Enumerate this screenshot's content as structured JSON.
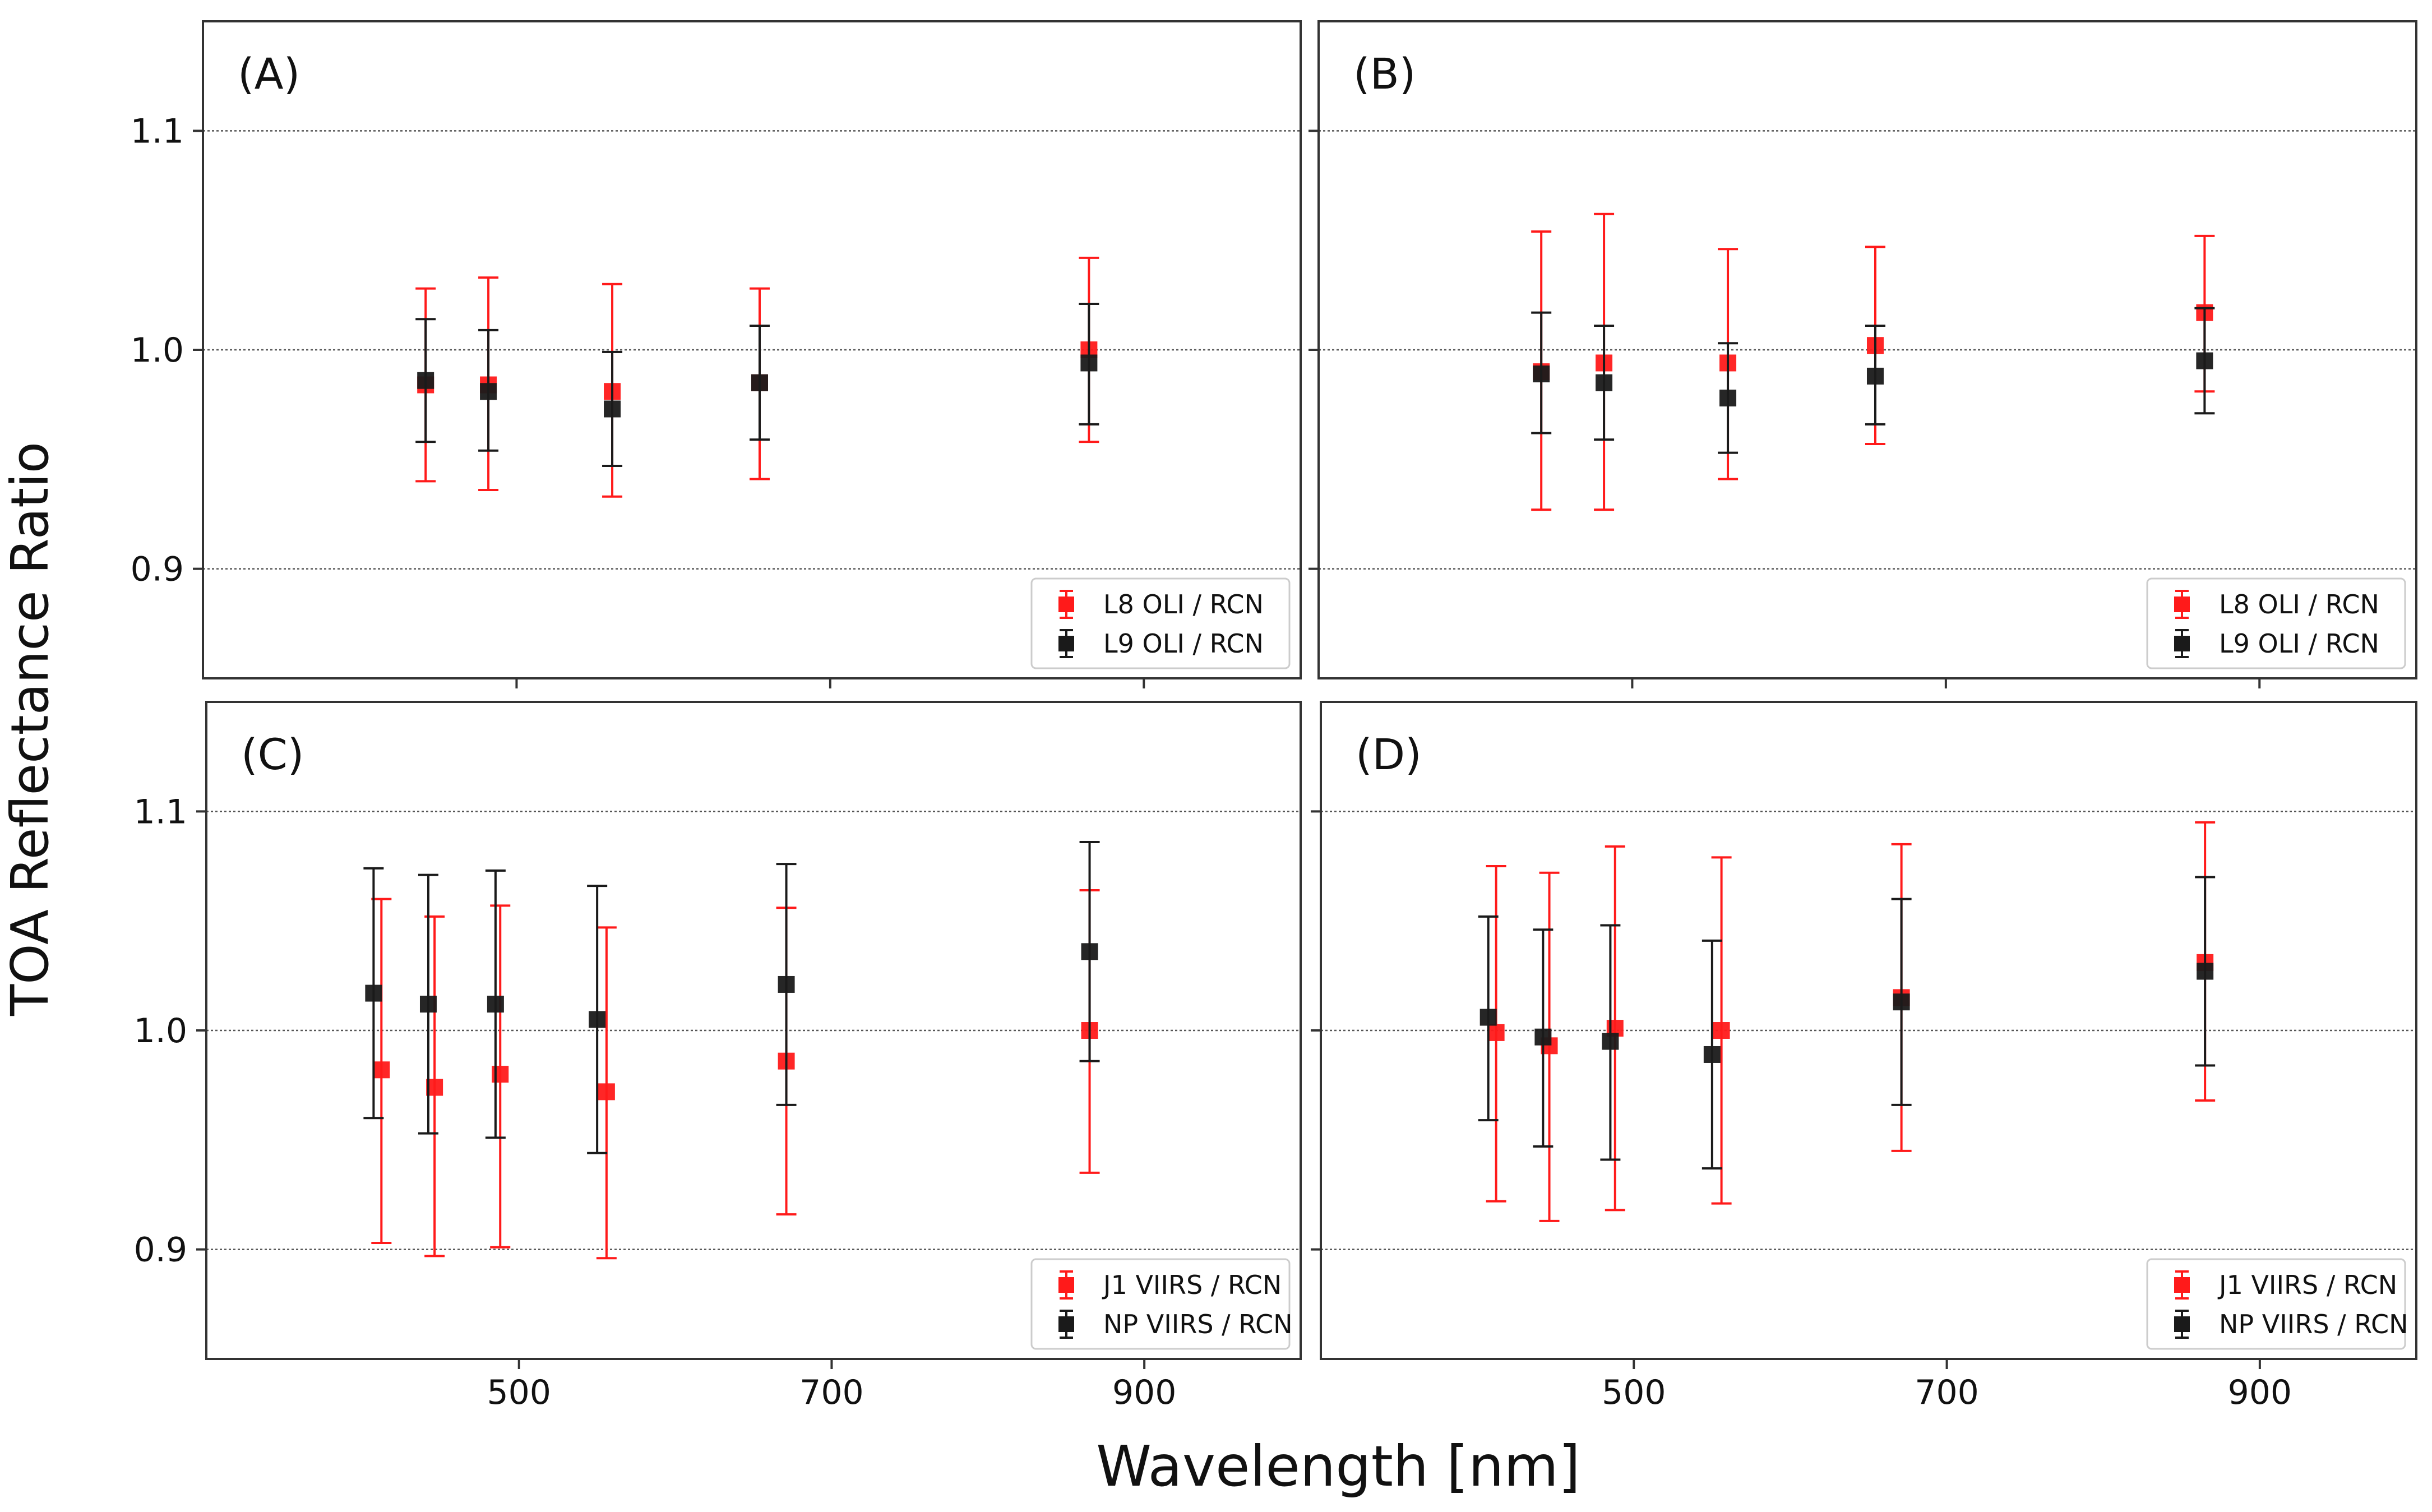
{
  "figure": {
    "ylabel": "TOA Reflectance Ratio",
    "xlabel": "Wavelength [nm]"
  },
  "colors": {
    "red": "#ff1a1a",
    "black": "#1a1a1a",
    "grid": "#555555"
  },
  "chart_data": [
    {
      "type": "scatter",
      "panel_label": "(A)",
      "xlim": [
        300,
        1000
      ],
      "ylim": [
        0.85,
        1.15
      ],
      "xticks": [
        500,
        700,
        900
      ],
      "yticks": [
        0.9,
        1.0,
        1.1
      ],
      "ytick_labels": [
        "0.9",
        "1.0",
        "1.1"
      ],
      "grid": "horizontal dotted",
      "legend_position": "lower-right",
      "series": [
        {
          "name": "L8 OLI / RCN",
          "color": "red",
          "x": [
            442,
            482,
            561,
            655,
            865
          ],
          "y": [
            0.984,
            0.984,
            0.981,
            0.985,
            1.0
          ],
          "yerr_low": [
            0.94,
            0.936,
            0.933,
            0.941,
            0.958
          ],
          "yerr_high": [
            1.028,
            1.033,
            1.03,
            1.028,
            1.042
          ]
        },
        {
          "name": "L9 OLI / RCN",
          "color": "black",
          "x": [
            442,
            482,
            561,
            655,
            865
          ],
          "y": [
            0.986,
            0.981,
            0.973,
            0.985,
            0.994
          ],
          "yerr_low": [
            0.958,
            0.954,
            0.947,
            0.959,
            0.966
          ],
          "yerr_high": [
            1.014,
            1.009,
            0.999,
            1.011,
            1.021
          ]
        }
      ]
    },
    {
      "type": "scatter",
      "panel_label": "(B)",
      "xlim": [
        300,
        1000
      ],
      "ylim": [
        0.85,
        1.15
      ],
      "xticks": [
        500,
        700,
        900
      ],
      "yticks": [
        0.9,
        1.0,
        1.1
      ],
      "ytick_labels": [
        "",
        "",
        ""
      ],
      "grid": "horizontal dotted",
      "legend_position": "lower-right",
      "series": [
        {
          "name": "L8 OLI / RCN",
          "color": "red",
          "x": [
            442,
            482,
            561,
            655,
            865
          ],
          "y": [
            0.99,
            0.994,
            0.994,
            1.002,
            1.017
          ],
          "yerr_low": [
            0.927,
            0.927,
            0.941,
            0.957,
            0.981
          ],
          "yerr_high": [
            1.054,
            1.062,
            1.046,
            1.047,
            1.052
          ]
        },
        {
          "name": "L9 OLI / RCN",
          "color": "black",
          "x": [
            442,
            482,
            561,
            655,
            865
          ],
          "y": [
            0.989,
            0.985,
            0.978,
            0.988,
            0.995
          ],
          "yerr_low": [
            0.962,
            0.959,
            0.953,
            0.966,
            0.971
          ],
          "yerr_high": [
            1.017,
            1.011,
            1.003,
            1.011,
            1.019
          ]
        }
      ]
    },
    {
      "type": "scatter",
      "panel_label": "(C)",
      "xlim": [
        300,
        1000
      ],
      "ylim": [
        0.85,
        1.15
      ],
      "xticks": [
        500,
        700,
        900
      ],
      "yticks": [
        0.9,
        1.0,
        1.1
      ],
      "ytick_labels": [
        "0.9",
        "1.0",
        "1.1"
      ],
      "xtick_labels": [
        "500",
        "700",
        "900"
      ],
      "grid": "horizontal dotted",
      "legend_position": "lower-right",
      "series": [
        {
          "name": "J1 VIIRS / RCN",
          "color": "red",
          "x": [
            412,
            446,
            488,
            556,
            671,
            865
          ],
          "y": [
            0.982,
            0.974,
            0.98,
            0.972,
            0.986,
            1.0
          ],
          "yerr_low": [
            0.903,
            0.897,
            0.901,
            0.896,
            0.916,
            0.935
          ],
          "yerr_high": [
            1.06,
            1.052,
            1.057,
            1.047,
            1.056,
            1.064
          ]
        },
        {
          "name": "NP VIIRS / RCN",
          "color": "black",
          "x": [
            407,
            442,
            485,
            550,
            671,
            865
          ],
          "y": [
            1.017,
            1.012,
            1.012,
            1.005,
            1.021,
            1.036
          ],
          "yerr_low": [
            0.96,
            0.953,
            0.951,
            0.944,
            0.966,
            0.986
          ],
          "yerr_high": [
            1.074,
            1.071,
            1.073,
            1.066,
            1.076,
            1.086
          ]
        }
      ]
    },
    {
      "type": "scatter",
      "panel_label": "(D)",
      "xlim": [
        300,
        1000
      ],
      "ylim": [
        0.85,
        1.15
      ],
      "xticks": [
        500,
        700,
        900
      ],
      "yticks": [
        0.9,
        1.0,
        1.1
      ],
      "ytick_labels": [
        "",
        "",
        ""
      ],
      "xtick_labels": [
        "500",
        "700",
        "900"
      ],
      "grid": "horizontal dotted",
      "legend_position": "lower-right",
      "series": [
        {
          "name": "J1 VIIRS / RCN",
          "color": "red",
          "x": [
            412,
            446,
            488,
            556,
            671,
            865
          ],
          "y": [
            0.999,
            0.993,
            1.001,
            1.0,
            1.015,
            1.031
          ],
          "yerr_low": [
            0.922,
            0.913,
            0.918,
            0.921,
            0.945,
            0.968
          ],
          "yerr_high": [
            1.075,
            1.072,
            1.084,
            1.079,
            1.085,
            1.095
          ]
        },
        {
          "name": "NP VIIRS / RCN",
          "color": "black",
          "x": [
            407,
            442,
            485,
            550,
            671,
            865
          ],
          "y": [
            1.006,
            0.997,
            0.995,
            0.989,
            1.013,
            1.027
          ],
          "yerr_low": [
            0.959,
            0.947,
            0.941,
            0.937,
            0.966,
            0.984
          ],
          "yerr_high": [
            1.052,
            1.046,
            1.048,
            1.041,
            1.06,
            1.07
          ]
        }
      ]
    }
  ]
}
